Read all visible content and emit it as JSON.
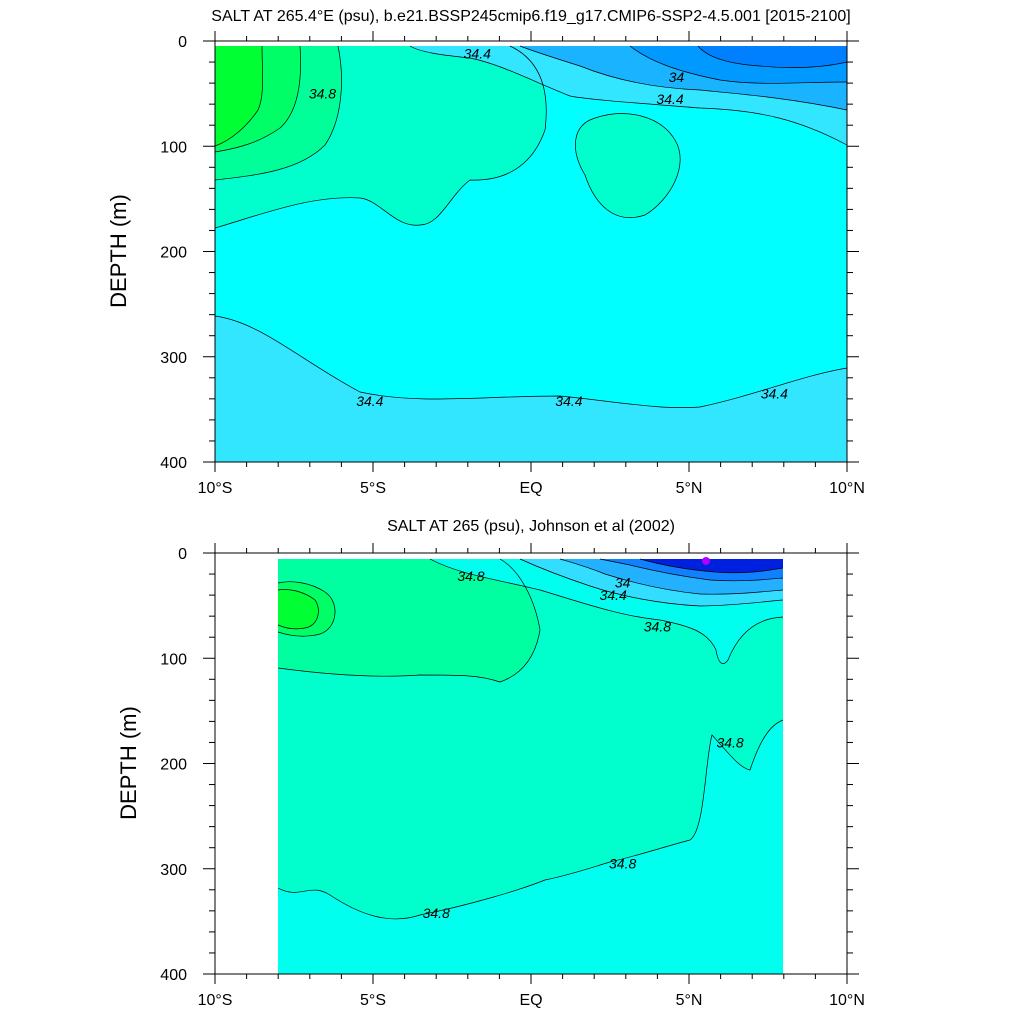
{
  "chart_data": [
    {
      "type": "contour",
      "title": "SALT AT 265.4°E (psu), b.e21.BSSP245cmip6.f19_g17.CMIP6-SSP2-4.5.001 [2015-2100]",
      "xlabel": "",
      "ylabel": "DEPTH (m)",
      "xlim": [
        -10,
        10
      ],
      "ylim": [
        400,
        0
      ],
      "x_tick_labels": [
        "10°S",
        "5°S",
        "EQ",
        "5°N",
        "10°N"
      ],
      "y_tick_labels": [
        "0",
        "100",
        "200",
        "300",
        "400"
      ],
      "data_extent_lat": [
        -10,
        10
      ],
      "data_extent_depth": [
        5,
        400
      ],
      "contour_labels": [
        {
          "text": "34.4",
          "lat": -1.7,
          "depth": 12
        },
        {
          "text": "34",
          "lat": 4.6,
          "depth": 34
        },
        {
          "text": "34.4",
          "lat": 4.4,
          "depth": 55
        },
        {
          "text": "34.8",
          "lat": -6.6,
          "depth": 50
        },
        {
          "text": "34.4",
          "lat": -5.1,
          "depth": 342
        },
        {
          "text": "34.4",
          "lat": 1.2,
          "depth": 342
        },
        {
          "text": "34.4",
          "lat": 7.7,
          "depth": 335
        }
      ],
      "regions": [
        {
          "level": "34.4 – 34.8",
          "color": "#00FFFF"
        },
        {
          "level": "34.8 – 35.0",
          "color": "#00FFCC"
        },
        {
          "level": "35.0 – 35.2",
          "color": "#00FF99"
        },
        {
          "level": "35.2 – 35.4",
          "color": "#00FF66"
        },
        {
          "level": "35.4 – 35.6",
          "color": "#00FF33"
        },
        {
          "level": "34.2 – 34.4",
          "color": "#33E6FF"
        },
        {
          "level": "34.0 – 34.2",
          "color": "#1AB3FF"
        },
        {
          "level": "< 34.0",
          "color": "#0080FF"
        }
      ]
    },
    {
      "type": "contour",
      "title": "SALT AT 265 (psu), Johnson et al (2002)",
      "xlabel": "",
      "ylabel": "DEPTH (m)",
      "xlim": [
        -10,
        10
      ],
      "ylim": [
        400,
        0
      ],
      "x_tick_labels": [
        "10°S",
        "5°S",
        "EQ",
        "5°N",
        "10°N"
      ],
      "y_tick_labels": [
        "0",
        "100",
        "200",
        "300",
        "400"
      ],
      "data_extent_lat": [
        -8,
        8
      ],
      "data_extent_depth": [
        5,
        400
      ],
      "contour_labels": [
        {
          "text": "34.8",
          "lat": -1.9,
          "depth": 22
        },
        {
          "text": "34",
          "lat": 2.9,
          "depth": 28
        },
        {
          "text": "34.4",
          "lat": 2.6,
          "depth": 40
        },
        {
          "text": "34.8",
          "lat": 4.0,
          "depth": 70
        },
        {
          "text": "34.8",
          "lat": 6.3,
          "depth": 180
        },
        {
          "text": "34.8",
          "lat": 2.9,
          "depth": 295
        },
        {
          "text": "34.8",
          "lat": -3.0,
          "depth": 342
        }
      ],
      "regions": [
        {
          "level": "34.8 – 35.0",
          "color": "#00FFCC"
        },
        {
          "level": "35.0 – 35.2",
          "color": "#00FFA0"
        },
        {
          "level": "35.2 – 35.4",
          "color": "#00FF66"
        },
        {
          "level": "35.4 – 35.6",
          "color": "#00FF33"
        },
        {
          "level": "34.6 – 34.8",
          "color": "#00FFEE"
        },
        {
          "level": "34.4 – 34.6",
          "color": "#33DDFF"
        },
        {
          "level": "34.2 – 34.4",
          "color": "#22B0FF"
        },
        {
          "level": "34.0 – 34.2",
          "color": "#1080FF"
        },
        {
          "level": "< 34.0",
          "color": "#0020E0"
        }
      ]
    }
  ]
}
